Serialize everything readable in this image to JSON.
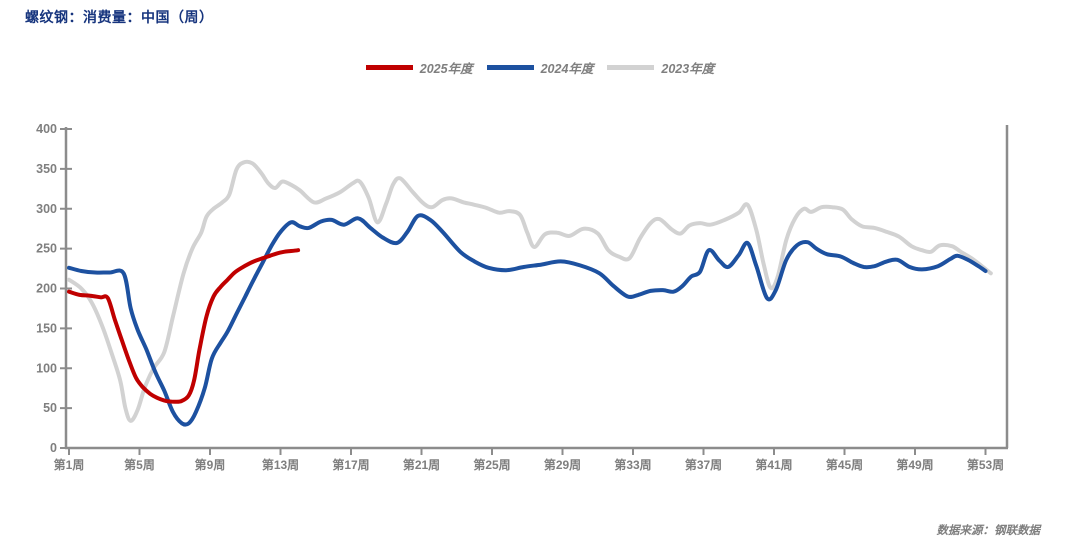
{
  "header": {
    "title": "螺纹钢：消费量：中国（周）"
  },
  "footer": {
    "source": "数据来源：钢联数据"
  },
  "colors": {
    "title": "#17357e",
    "axis": "#8c8c8c",
    "tick_label": "#7f7f7f",
    "legend_text": "#7f7f7f",
    "source_text": "#7f7f7f",
    "background": "#ffffff"
  },
  "chart_data": {
    "type": "line",
    "title": "螺纹钢：消费量：中国（周）",
    "xlabel": "",
    "ylabel": "",
    "ylim": [
      0,
      400
    ],
    "y_ticks": [
      0,
      50,
      100,
      150,
      200,
      250,
      300,
      350,
      400
    ],
    "x_tick_weeks": [
      1,
      5,
      9,
      13,
      17,
      21,
      25,
      29,
      33,
      37,
      41,
      45,
      49,
      53
    ],
    "x_tick_labels": [
      "第1周",
      "第5周",
      "第9周",
      "第13周",
      "第17周",
      "第21周",
      "第25周",
      "第29周",
      "第33周",
      "第37周",
      "第41周",
      "第45周",
      "第49周",
      "第53周"
    ],
    "grid": false,
    "legend_position": "top-center",
    "series": [
      {
        "name": "2025年度",
        "color": "#c00000",
        "points": [
          [
            1,
            196
          ],
          [
            1.6,
            192
          ],
          [
            2.2,
            191
          ],
          [
            2.8,
            189
          ],
          [
            3.2,
            188
          ],
          [
            3.6,
            161
          ],
          [
            4,
            135
          ],
          [
            4.4,
            110
          ],
          [
            4.8,
            88
          ],
          [
            5.2,
            76
          ],
          [
            5.6,
            68
          ],
          [
            6,
            63
          ],
          [
            6.5,
            59
          ],
          [
            7,
            58
          ],
          [
            7.4,
            59
          ],
          [
            7.8,
            66
          ],
          [
            8.1,
            85
          ],
          [
            8.4,
            123
          ],
          [
            8.8,
            165
          ],
          [
            9.2,
            190
          ],
          [
            9.6,
            202
          ],
          [
            10,
            211
          ],
          [
            10.4,
            220
          ],
          [
            10.8,
            226
          ],
          [
            11.2,
            231
          ],
          [
            11.6,
            235
          ],
          [
            12,
            238
          ],
          [
            12.4,
            241
          ],
          [
            12.8,
            244
          ],
          [
            13.2,
            246
          ],
          [
            13.6,
            247
          ],
          [
            14,
            248
          ]
        ]
      },
      {
        "name": "2024年度",
        "color": "#1d51a0",
        "points": [
          [
            1,
            226
          ],
          [
            1.7,
            222
          ],
          [
            2.5,
            220
          ],
          [
            3.3,
            220
          ],
          [
            4.1,
            219
          ],
          [
            4.5,
            175
          ],
          [
            4.9,
            148
          ],
          [
            5.4,
            123
          ],
          [
            5.9,
            95
          ],
          [
            6.4,
            72
          ],
          [
            6.9,
            45
          ],
          [
            7.4,
            31
          ],
          [
            7.8,
            31
          ],
          [
            8.2,
            45
          ],
          [
            8.7,
            75
          ],
          [
            9.1,
            112
          ],
          [
            9.6,
            132
          ],
          [
            10,
            146
          ],
          [
            10.5,
            168
          ],
          [
            11,
            190
          ],
          [
            11.5,
            212
          ],
          [
            12,
            233
          ],
          [
            12.5,
            254
          ],
          [
            13,
            271
          ],
          [
            13.6,
            283
          ],
          [
            14.1,
            278
          ],
          [
            14.6,
            276
          ],
          [
            15.3,
            284
          ],
          [
            15.9,
            286
          ],
          [
            16.6,
            280
          ],
          [
            17.4,
            288
          ],
          [
            18.1,
            276
          ],
          [
            18.8,
            264
          ],
          [
            19.6,
            257
          ],
          [
            20.2,
            271
          ],
          [
            20.8,
            291
          ],
          [
            21.5,
            286
          ],
          [
            22.2,
            271
          ],
          [
            23.2,
            246
          ],
          [
            24,
            234
          ],
          [
            24.8,
            226
          ],
          [
            25.8,
            223
          ],
          [
            26.8,
            227
          ],
          [
            27.8,
            230
          ],
          [
            28.9,
            234
          ],
          [
            30,
            229
          ],
          [
            31.1,
            219
          ],
          [
            31.9,
            203
          ],
          [
            32.7,
            190
          ],
          [
            33.3,
            192
          ],
          [
            34,
            197
          ],
          [
            34.7,
            198
          ],
          [
            35.3,
            196
          ],
          [
            35.8,
            203
          ],
          [
            36.3,
            215
          ],
          [
            36.8,
            221
          ],
          [
            37.3,
            248
          ],
          [
            37.9,
            235
          ],
          [
            38.4,
            227
          ],
          [
            39,
            242
          ],
          [
            39.5,
            257
          ],
          [
            40,
            228
          ],
          [
            40.6,
            188
          ],
          [
            41.1,
            198
          ],
          [
            41.7,
            236
          ],
          [
            42.3,
            254
          ],
          [
            42.9,
            258
          ],
          [
            43.4,
            250
          ],
          [
            44,
            243
          ],
          [
            44.8,
            240
          ],
          [
            45.5,
            232
          ],
          [
            46.1,
            227
          ],
          [
            46.7,
            228
          ],
          [
            47.4,
            234
          ],
          [
            48,
            236
          ],
          [
            48.7,
            227
          ],
          [
            49.4,
            224
          ],
          [
            50.3,
            228
          ],
          [
            51,
            237
          ],
          [
            51.4,
            241
          ],
          [
            52,
            236
          ],
          [
            52.6,
            228
          ],
          [
            53,
            222
          ]
        ]
      },
      {
        "name": "2023年度",
        "color": "#d2d2d2",
        "points": [
          [
            1,
            211
          ],
          [
            1.7,
            200
          ],
          [
            2.3,
            182
          ],
          [
            2.9,
            152
          ],
          [
            3.4,
            120
          ],
          [
            3.9,
            85
          ],
          [
            4.2,
            50
          ],
          [
            4.5,
            34
          ],
          [
            4.9,
            48
          ],
          [
            5.3,
            76
          ],
          [
            5.8,
            100
          ],
          [
            6.4,
            120
          ],
          [
            6.9,
            165
          ],
          [
            7.5,
            219
          ],
          [
            8,
            250
          ],
          [
            8.5,
            270
          ],
          [
            8.8,
            290
          ],
          [
            9.2,
            300
          ],
          [
            9.7,
            308
          ],
          [
            10.1,
            318
          ],
          [
            10.5,
            349
          ],
          [
            10.9,
            358
          ],
          [
            11.4,
            357
          ],
          [
            11.9,
            345
          ],
          [
            12.3,
            332
          ],
          [
            12.7,
            326
          ],
          [
            13.1,
            334
          ],
          [
            13.6,
            330
          ],
          [
            14.1,
            323
          ],
          [
            14.9,
            308
          ],
          [
            15.6,
            313
          ],
          [
            16.4,
            321
          ],
          [
            17.1,
            332
          ],
          [
            17.5,
            334
          ],
          [
            18,
            314
          ],
          [
            18.5,
            283
          ],
          [
            19,
            307
          ],
          [
            19.4,
            331
          ],
          [
            19.8,
            338
          ],
          [
            20.5,
            321
          ],
          [
            21.1,
            307
          ],
          [
            21.6,
            302
          ],
          [
            22.2,
            311
          ],
          [
            22.7,
            313
          ],
          [
            23.4,
            308
          ],
          [
            24,
            305
          ],
          [
            24.7,
            301
          ],
          [
            25.4,
            295
          ],
          [
            26,
            297
          ],
          [
            26.6,
            292
          ],
          [
            27,
            270
          ],
          [
            27.4,
            252
          ],
          [
            28,
            268
          ],
          [
            28.7,
            270
          ],
          [
            29.4,
            266
          ],
          [
            30.2,
            275
          ],
          [
            31,
            269
          ],
          [
            31.6,
            248
          ],
          [
            32.2,
            240
          ],
          [
            32.8,
            238
          ],
          [
            33.4,
            263
          ],
          [
            34,
            282
          ],
          [
            34.5,
            287
          ],
          [
            35.2,
            274
          ],
          [
            35.7,
            269
          ],
          [
            36.2,
            279
          ],
          [
            36.8,
            282
          ],
          [
            37.4,
            280
          ],
          [
            38.2,
            286
          ],
          [
            39,
            295
          ],
          [
            39.5,
            305
          ],
          [
            40,
            273
          ],
          [
            40.4,
            232
          ],
          [
            40.8,
            201
          ],
          [
            41.2,
            214
          ],
          [
            41.7,
            261
          ],
          [
            42.2,
            288
          ],
          [
            42.7,
            300
          ],
          [
            43.1,
            296
          ],
          [
            43.7,
            302
          ],
          [
            44.3,
            302
          ],
          [
            44.9,
            299
          ],
          [
            45.4,
            287
          ],
          [
            46,
            278
          ],
          [
            46.7,
            276
          ],
          [
            47.4,
            271
          ],
          [
            48.1,
            265
          ],
          [
            48.8,
            253
          ],
          [
            49.4,
            248
          ],
          [
            49.9,
            246
          ],
          [
            50.4,
            254
          ],
          [
            51.1,
            253
          ],
          [
            51.6,
            246
          ],
          [
            52.2,
            238
          ],
          [
            52.8,
            228
          ],
          [
            53.3,
            219
          ]
        ]
      }
    ]
  }
}
